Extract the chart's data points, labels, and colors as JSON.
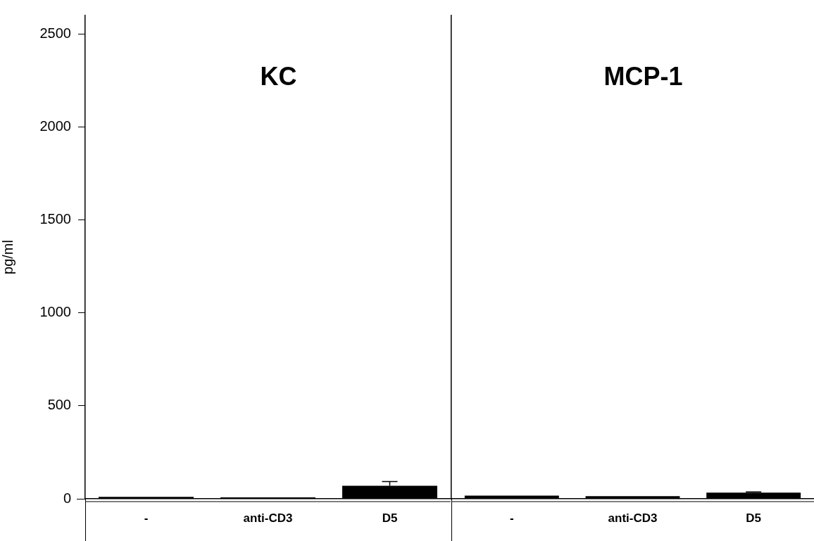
{
  "chart_data": [
    {
      "type": "bar",
      "title": "KC",
      "ylabel": "pg/ml",
      "categories": [
        "-",
        "anti-CD3",
        "D5"
      ],
      "values": [
        10,
        8,
        70
      ],
      "errors": [
        null,
        null,
        [
          70,
          93
        ]
      ],
      "color": "#000000",
      "ylim": [
        0,
        2600
      ],
      "yticks": [
        0,
        500,
        1000,
        1500,
        2000,
        2500
      ],
      "grid": false
    },
    {
      "type": "bar",
      "title": "MCP-1",
      "categories": [
        "-",
        "anti-CD3",
        "D5"
      ],
      "values": [
        17,
        14,
        33
      ],
      "errors": [
        null,
        null,
        [
          33,
          37
        ]
      ],
      "color": "#000000",
      "ylim": [
        0,
        2600
      ],
      "yticks": [
        0,
        500,
        1000,
        1500,
        2000,
        2500
      ],
      "grid": false,
      "tick_labels": "x"
    }
  ]
}
